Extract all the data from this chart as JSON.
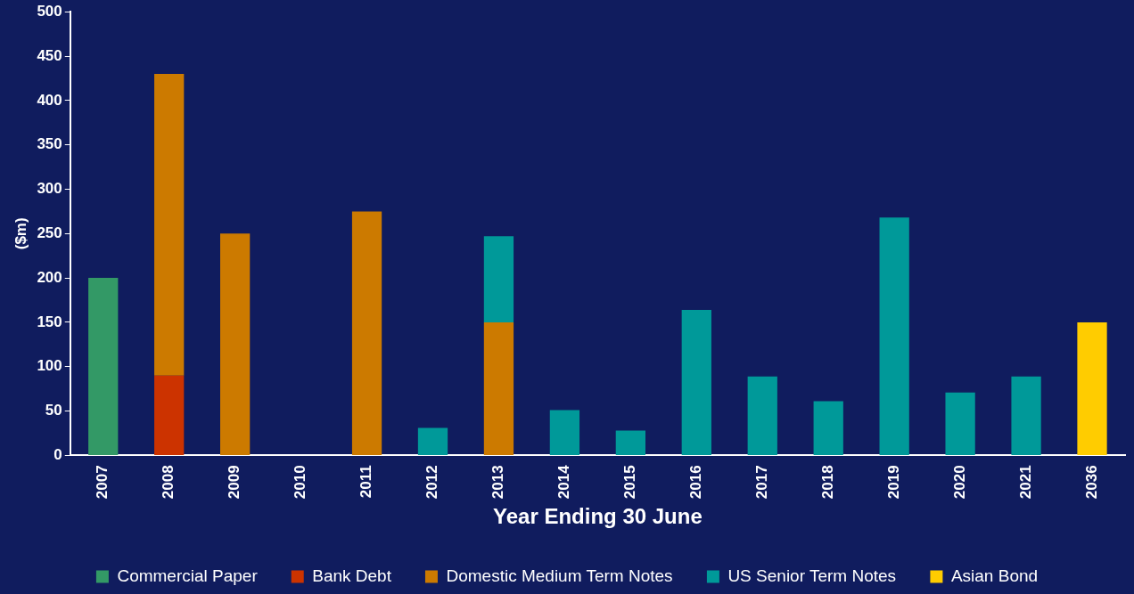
{
  "chart_data": {
    "type": "bar",
    "stacked": true,
    "xlabel": "Year Ending 30 June",
    "ylabel": "($m)",
    "categories": [
      "2007",
      "2008",
      "2009",
      "2010",
      "2011",
      "2012",
      "2013",
      "2014",
      "2015",
      "2016",
      "2017",
      "2018",
      "2019",
      "2020",
      "2021",
      "2036"
    ],
    "series": [
      {
        "name": "Commercial Paper",
        "color": "#339966",
        "values": [
          200,
          null,
          null,
          null,
          null,
          null,
          null,
          null,
          null,
          null,
          null,
          null,
          null,
          null,
          null,
          null
        ]
      },
      {
        "name": "Bank Debt",
        "color": "#cc3300",
        "values": [
          null,
          90,
          null,
          null,
          null,
          null,
          null,
          null,
          null,
          null,
          null,
          null,
          null,
          null,
          null,
          null
        ]
      },
      {
        "name": "Domestic Medium Term Notes",
        "color": "#cc7a00",
        "values": [
          null,
          340,
          250,
          null,
          275,
          null,
          150,
          null,
          null,
          null,
          null,
          null,
          null,
          null,
          null,
          null
        ]
      },
      {
        "name": "US Senior Term Notes",
        "color": "#009999",
        "values": [
          null,
          null,
          null,
          null,
          null,
          31,
          97,
          51,
          28,
          164,
          89,
          61,
          268,
          71,
          89,
          null
        ]
      },
      {
        "name": "Asian Bond",
        "color": "#ffcc00",
        "values": [
          null,
          null,
          null,
          null,
          null,
          null,
          null,
          null,
          null,
          null,
          null,
          null,
          null,
          null,
          null,
          150
        ]
      }
    ],
    "ylim": [
      0,
      500
    ],
    "yticks": [
      0,
      50,
      100,
      150,
      200,
      250,
      300,
      350,
      400,
      450,
      500
    ],
    "grid": false,
    "legend": "bottom"
  }
}
